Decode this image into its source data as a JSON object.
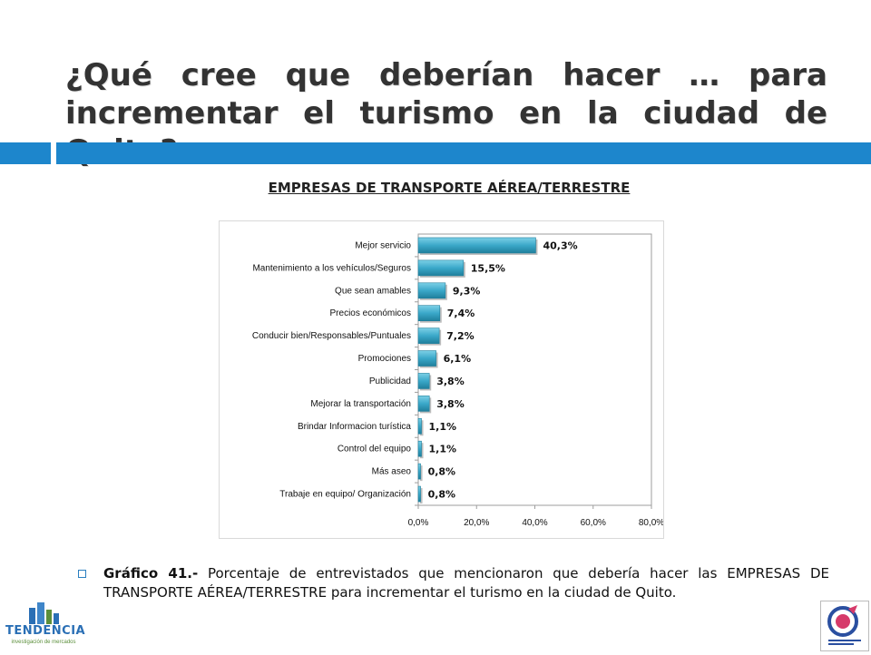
{
  "slide": {
    "title": "¿Qué cree que deberían hacer … para incrementar el turismo en la ciudad de Quito?",
    "chart_heading": "EMPRESAS DE TRANSPORTE AÉREA/TERRESTRE",
    "caption_label": "Gráfico 41.-",
    "caption_text": " Porcentaje de entrevistados que mencionaron que debería hacer las EMPRESAS DE TRANSPORTE AÉREA/TERRESTRE para incrementar el turismo en la ciudad de Quito.",
    "logo_left_text": "TENDENCIA",
    "logo_left_subtext": "investigación de mercados",
    "logo_right_icon": "quito-tourism-logo-icon"
  },
  "colors": {
    "accent_blue": "#1d86cc",
    "bar_fill": "#3aa8c9",
    "bar_light": "#7cd0e6",
    "title_text": "#333333"
  },
  "chart_data": {
    "type": "bar",
    "orientation": "horizontal",
    "categories": [
      "Mejor servicio",
      "Mantenimiento a los vehículos/Seguros",
      "Que sean amables",
      "Precios económicos",
      "Conducir bien/Responsables/Puntuales",
      "Promociones",
      "Publicidad",
      "Mejorar la transportación",
      "Brindar Informacion turística",
      "Control del equipo",
      "Más aseo",
      "Trabaje en equipo/ Organización"
    ],
    "values": [
      40.3,
      15.5,
      9.3,
      7.4,
      7.2,
      6.1,
      3.8,
      3.8,
      1.1,
      1.1,
      0.8,
      0.8
    ],
    "value_labels": [
      "40,3%",
      "15,5%",
      "9,3%",
      "7,4%",
      "7,2%",
      "6,1%",
      "3,8%",
      "3,8%",
      "1,1%",
      "1,1%",
      "0,8%",
      "0,8%"
    ],
    "xlim": [
      0,
      80
    ],
    "xticks": [
      0,
      20,
      40,
      60,
      80
    ],
    "xtick_labels": [
      "0,0%",
      "20,0%",
      "40,0%",
      "60,0%",
      "80,0%"
    ],
    "grid": false,
    "legend": "none"
  }
}
